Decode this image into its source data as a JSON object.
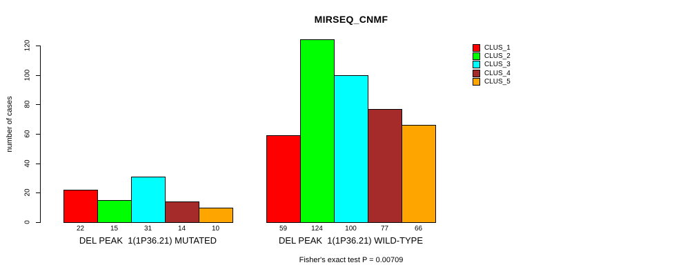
{
  "title": "MIRSEQ_CNMF",
  "annotation": "Fisher's exact test P = 0.00709",
  "chart_data": {
    "type": "bar",
    "title": "MIRSEQ_CNMF",
    "xlabel": "",
    "ylabel": "number of cases",
    "ylim": [
      0,
      130
    ],
    "yticks": [
      0,
      20,
      40,
      60,
      80,
      100,
      120
    ],
    "grid": false,
    "legend_position": "right",
    "legend": [
      {
        "name": "CLUS_1",
        "color": "#ff0000"
      },
      {
        "name": "CLUS_2",
        "color": "#00ff00"
      },
      {
        "name": "CLUS_3",
        "color": "#00ffff"
      },
      {
        "name": "CLUS_4",
        "color": "#a52a2a"
      },
      {
        "name": "CLUS_5",
        "color": "#ffa500"
      }
    ],
    "groups": [
      {
        "label": "DEL PEAK  1(1P36.21) MUTATED",
        "values": [
          22,
          15,
          31,
          14,
          10
        ]
      },
      {
        "label": "DEL PEAK  1(1P36.21) WILD-TYPE",
        "values": [
          59,
          124,
          100,
          77,
          66
        ]
      }
    ],
    "annotation": "Fisher's exact test P = 0.00709"
  }
}
